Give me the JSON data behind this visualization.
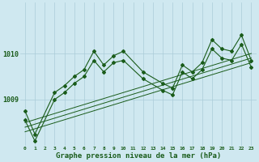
{
  "xlabel": "Graphe pression niveau de la mer (hPa)",
  "xlim": [
    -0.5,
    23.5
  ],
  "ylim": [
    1008.0,
    1011.1
  ],
  "yticks": [
    1009,
    1010
  ],
  "xticks": [
    0,
    1,
    2,
    3,
    4,
    5,
    6,
    7,
    8,
    9,
    10,
    11,
    12,
    13,
    14,
    15,
    16,
    17,
    18,
    19,
    20,
    21,
    22,
    23
  ],
  "bg_color": "#cfe8f0",
  "line_color": "#1a5c1a",
  "grid_color": "#aaccd8",
  "main_line": {
    "x": [
      0,
      1,
      3,
      4,
      5,
      6,
      7,
      8,
      9,
      10,
      12,
      14,
      15,
      16,
      17,
      18,
      19,
      20,
      21,
      22,
      23
    ],
    "y": [
      1008.75,
      1008.25,
      1009.15,
      1009.3,
      1009.5,
      1009.65,
      1010.05,
      1009.75,
      1009.95,
      1010.05,
      1009.6,
      1009.35,
      1009.25,
      1009.75,
      1009.6,
      1009.8,
      1010.3,
      1010.1,
      1010.05,
      1010.4,
      1009.85
    ]
  },
  "second_line": {
    "x": [
      0,
      1,
      3,
      4,
      5,
      6,
      7,
      8,
      9,
      10,
      12,
      14,
      15,
      16,
      17,
      18,
      19,
      20,
      21,
      22,
      23
    ],
    "y": [
      1008.55,
      1008.1,
      1009.0,
      1009.15,
      1009.35,
      1009.5,
      1009.85,
      1009.6,
      1009.8,
      1009.85,
      1009.45,
      1009.2,
      1009.1,
      1009.6,
      1009.45,
      1009.65,
      1010.1,
      1009.9,
      1009.85,
      1010.2,
      1009.7
    ]
  },
  "trend1": {
    "x": [
      0,
      23
    ],
    "y": [
      1008.5,
      1010.0
    ]
  },
  "trend2": {
    "x": [
      0,
      23
    ],
    "y": [
      1008.4,
      1009.9
    ]
  },
  "trend3": {
    "x": [
      0,
      23
    ],
    "y": [
      1008.3,
      1009.8
    ]
  }
}
